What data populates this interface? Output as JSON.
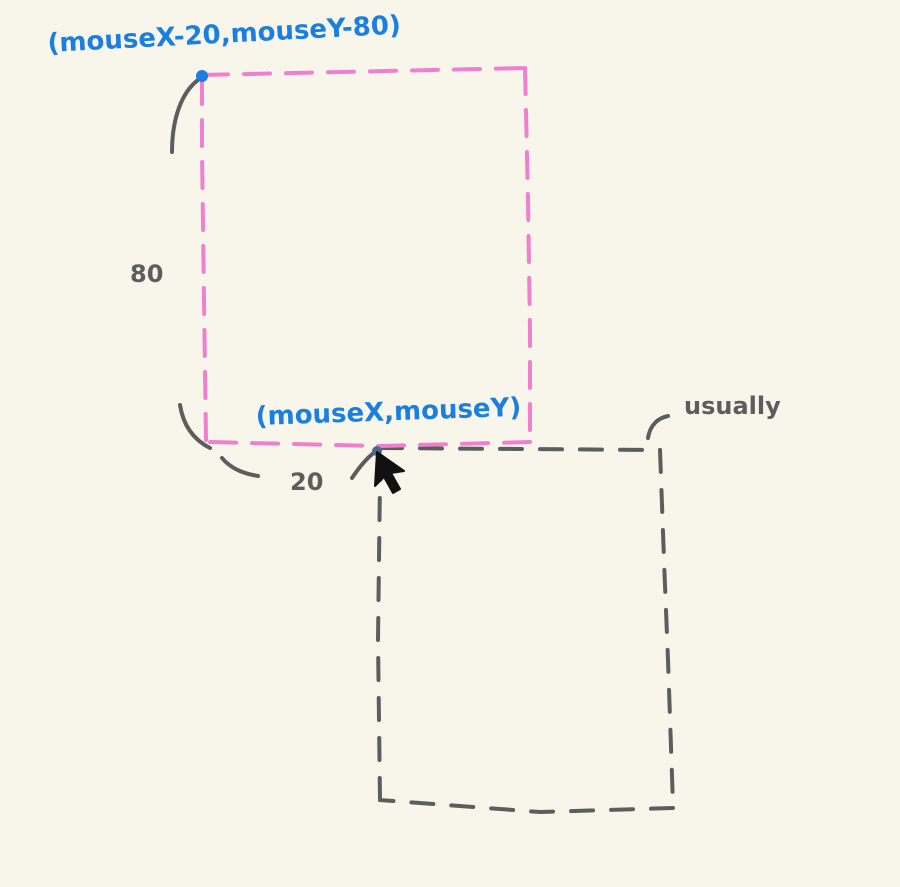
{
  "labels": {
    "top_left_coord": "(mouseX-20,mouseY-80)",
    "mouse_coord": "(mouseX,mouseY)",
    "height_label": "80",
    "width_label": "20",
    "usual_label": "usually"
  },
  "colors": {
    "background": "#f8f5ea",
    "accent_blue": "#1a7fe0",
    "pink_dash": "#f07fcf",
    "gray_dash": "#5d5d5d",
    "cursor": "#111111"
  },
  "icons": {
    "cursor": "mouse-pointer-icon"
  }
}
